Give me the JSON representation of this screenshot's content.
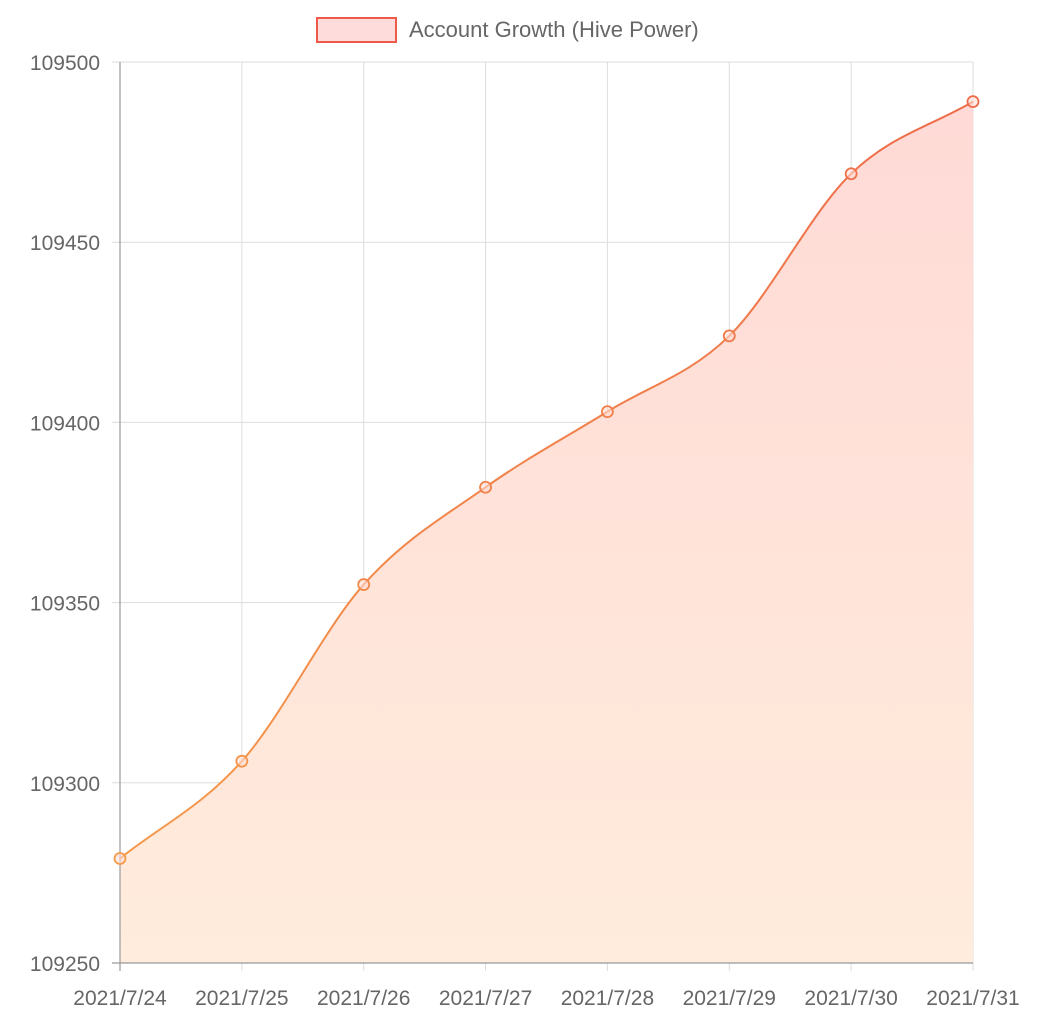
{
  "chart_data": {
    "type": "area",
    "title": "",
    "xlabel": "",
    "ylabel": "",
    "categories": [
      "2021/7/24",
      "2021/7/25",
      "2021/7/26",
      "2021/7/27",
      "2021/7/28",
      "2021/7/29",
      "2021/7/30",
      "2021/7/31"
    ],
    "series": [
      {
        "name": "Account Growth (Hive Power)",
        "values": [
          109279,
          109306,
          109355,
          109382,
          109403,
          109424,
          109469,
          109489
        ]
      }
    ],
    "ylim": [
      109250,
      109500
    ],
    "yticks": [
      109250,
      109300,
      109350,
      109400,
      109450,
      109500
    ],
    "grid": true,
    "legend_position": "top",
    "colors": {
      "line_start": "#f5a04b",
      "line_end": "#ee6a4a",
      "fill_top": "#ffd9d6",
      "fill_bottom": "#ffecdc",
      "legend_fill": "#ffdcdc",
      "legend_border": "#ee5a4a",
      "grid": "#dddddd",
      "axis": "#999999",
      "tick_text": "#666666"
    }
  }
}
